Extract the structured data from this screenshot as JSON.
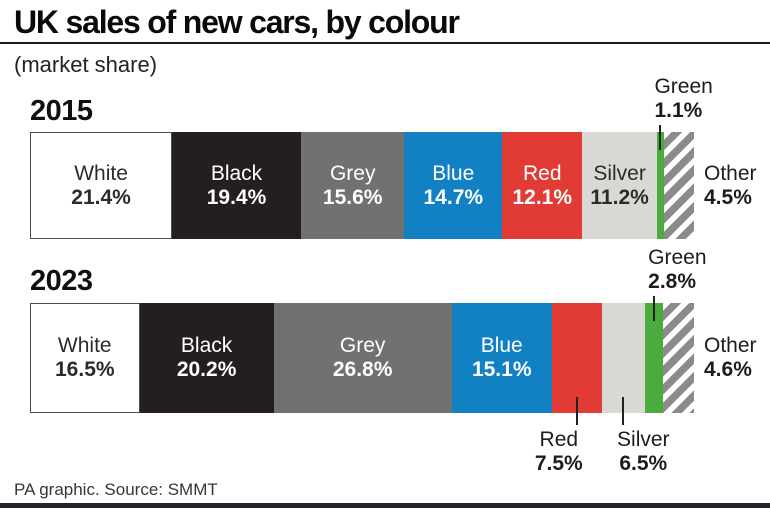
{
  "header": {
    "title": "UK sales of new cars, by colour",
    "subtitle": "(market share)"
  },
  "footer": {
    "credit": "PA graphic. Source: SMMT"
  },
  "chart_data": {
    "type": "bar",
    "variant": "horizontal-stacked-100-percent",
    "title": "UK sales of new cars, by colour",
    "subtitle": "(market share)",
    "source": "PA graphic. Source: SMMT",
    "unit": "%",
    "categories": [
      "White",
      "Black",
      "Grey",
      "Blue",
      "Red",
      "Silver",
      "Green",
      "Other"
    ],
    "series": [
      {
        "name": "2015",
        "values": [
          21.4,
          19.4,
          15.6,
          14.7,
          12.1,
          11.2,
          1.1,
          4.5
        ]
      },
      {
        "name": "2023",
        "values": [
          16.5,
          20.2,
          26.8,
          15.1,
          7.5,
          6.5,
          2.8,
          4.6
        ]
      }
    ],
    "colors": {
      "White": "#ffffff",
      "Black": "#231f20",
      "Grey": "#717171",
      "Blue": "#1181c3",
      "Red": "#e23a34",
      "Silver": "#d9d8d4",
      "Green": "#4aac3d",
      "Other": "grey-white-diagonal-hatch",
      "pointer_line": "#231f20",
      "keyline": "#232129"
    },
    "legend_position": "labels-on-segments",
    "axes": "none",
    "grid": false
  }
}
